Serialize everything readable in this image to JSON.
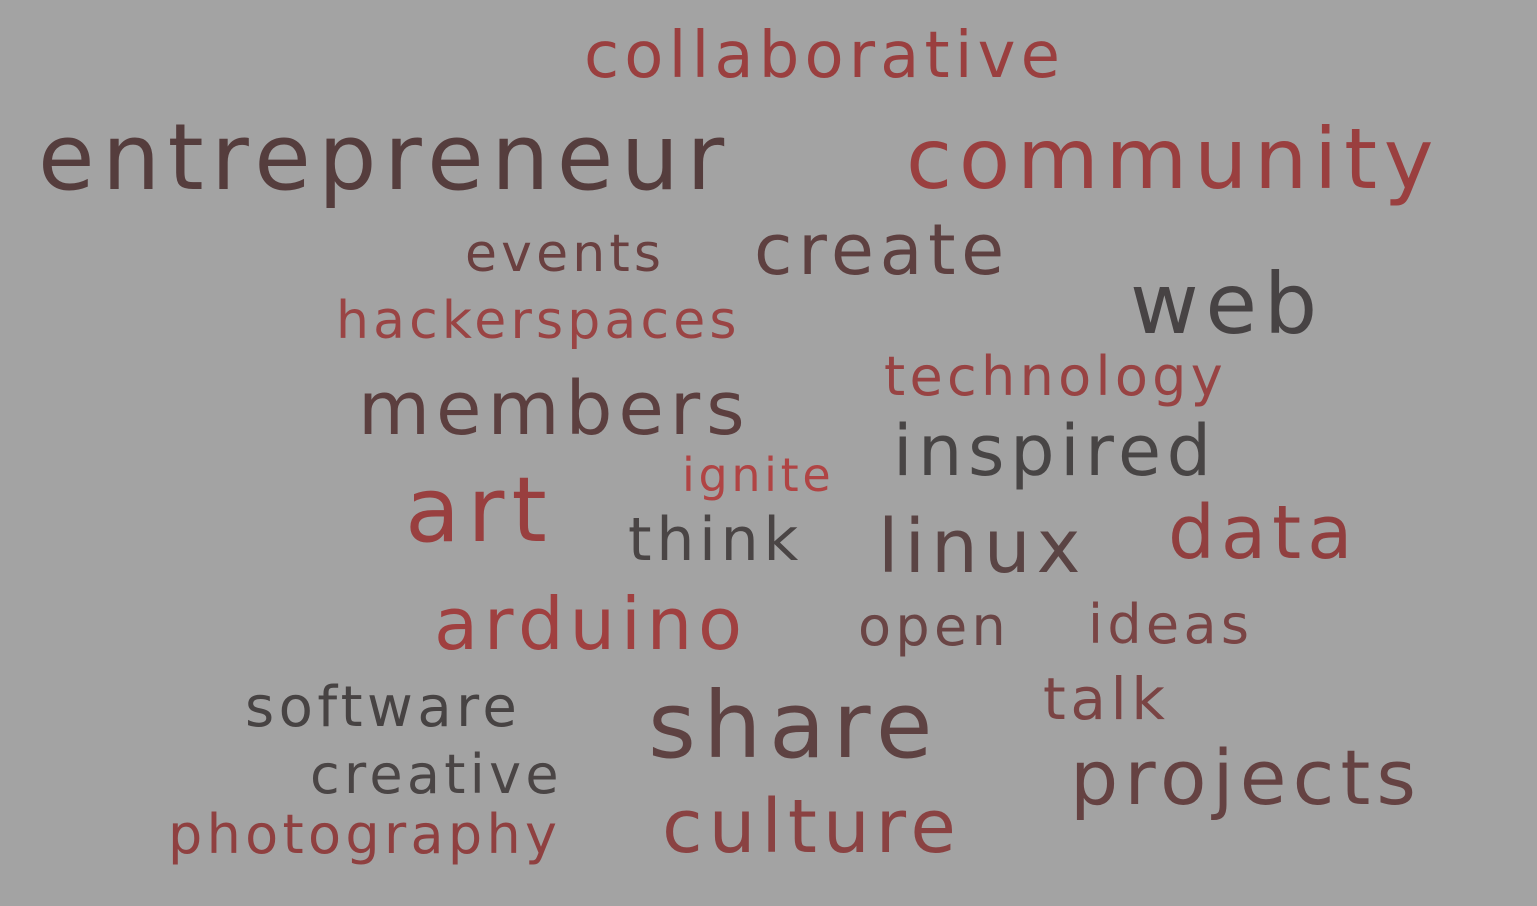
{
  "words": [
    {
      "text": "collaborative",
      "color": "#9a3f3f"
    },
    {
      "text": "entrepreneur",
      "color": "#553d3d"
    },
    {
      "text": "community",
      "color": "#9a3f3f"
    },
    {
      "text": "events",
      "color": "#6a4040"
    },
    {
      "text": "create",
      "color": "#5e4040"
    },
    {
      "text": "web",
      "color": "#474344"
    },
    {
      "text": "hackerspaces",
      "color": "#9a4444"
    },
    {
      "text": "technology",
      "color": "#984343"
    },
    {
      "text": "members",
      "color": "#5c3f3f"
    },
    {
      "text": "inspired",
      "color": "#484545"
    },
    {
      "text": "ignite",
      "color": "#b04444"
    },
    {
      "text": "art",
      "color": "#993f3f"
    },
    {
      "text": "think",
      "color": "#4a4545"
    },
    {
      "text": "linux",
      "color": "#5a4444"
    },
    {
      "text": "data",
      "color": "#913f3f"
    },
    {
      "text": "arduino",
      "color": "#a04040"
    },
    {
      "text": "open",
      "color": "#6a4545"
    },
    {
      "text": "ideas",
      "color": "#7a4444"
    },
    {
      "text": "software",
      "color": "#474343"
    },
    {
      "text": "talk",
      "color": "#7a4444"
    },
    {
      "text": "share",
      "color": "#5e4242"
    },
    {
      "text": "creative",
      "color": "#4a4545"
    },
    {
      "text": "projects",
      "color": "#654242"
    },
    {
      "text": "photography",
      "color": "#8f4040"
    },
    {
      "text": "culture",
      "color": "#8a4242"
    }
  ]
}
